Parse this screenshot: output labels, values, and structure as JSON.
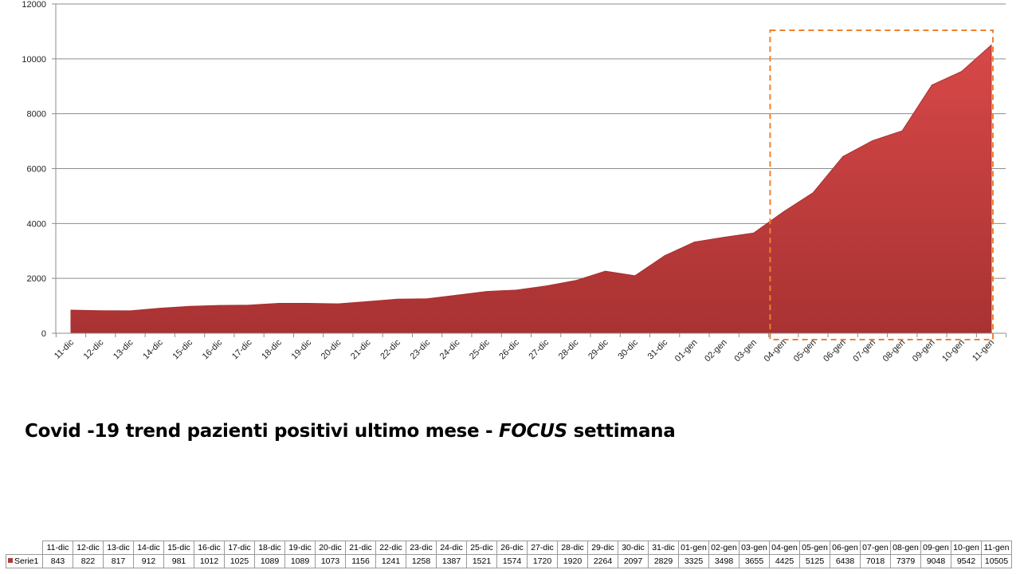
{
  "chart_data": {
    "type": "area",
    "categories": [
      "11-dic",
      "12-dic",
      "13-dic",
      "14-dic",
      "15-dic",
      "16-dic",
      "17-dic",
      "18-dic",
      "19-dic",
      "20-dic",
      "21-dic",
      "22-dic",
      "23-dic",
      "24-dic",
      "25-dic",
      "26-dic",
      "27-dic",
      "28-dic",
      "29-dic",
      "30-dic",
      "31-dic",
      "01-gen",
      "02-gen",
      "03-gen",
      "04-gen",
      "05-gen",
      "06-gen",
      "07-gen",
      "08-gen",
      "09-gen",
      "10-gen",
      "11-gen"
    ],
    "series": [
      {
        "name": "Serie1",
        "values": [
          843,
          822,
          817,
          912,
          981,
          1012,
          1025,
          1089,
          1089,
          1073,
          1156,
          1241,
          1258,
          1387,
          1521,
          1574,
          1720,
          1920,
          2264,
          2097,
          2829,
          3325,
          3498,
          3655,
          4425,
          5125,
          6438,
          7018,
          7379,
          9048,
          9542,
          10505
        ]
      }
    ],
    "ylim": [
      0,
      12000
    ],
    "yticks": [
      0,
      2000,
      4000,
      6000,
      8000,
      10000,
      12000
    ],
    "grid": true,
    "fill_color": "#b03a3a",
    "highlight_color": "#f08030",
    "highlight_range": [
      "04-gen",
      "11-gen"
    ]
  },
  "caption": {
    "prefix": "Covid -19 trend pazienti positivi ultimo mese - ",
    "focus": "FOCUS",
    "suffix": " settimana"
  }
}
